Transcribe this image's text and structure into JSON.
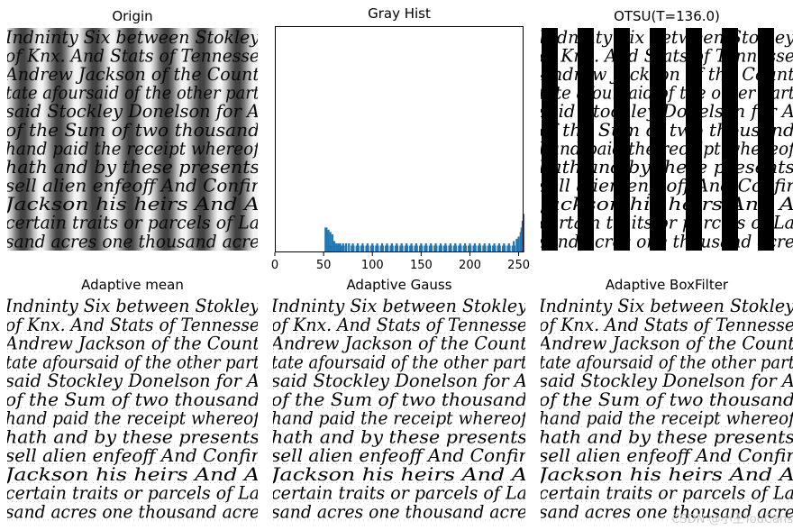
{
  "panels": {
    "origin": {
      "title": "Origin"
    },
    "gray_hist": {
      "title": "Gray Hist"
    },
    "otsu": {
      "title": "OTSU(T=136.0)"
    },
    "adaptive_mean": {
      "title": "Adaptive mean"
    },
    "adaptive_gauss": {
      "title": "Adaptive Gauss"
    },
    "adaptive_boxfilter": {
      "title": "Adaptive BoxFilter"
    }
  },
  "handwriting_lines": [
    "Indninty Six between Stokley",
    "of Knx. And Stats of Tennesse",
    "Andrew Jackson of the Count",
    "tate afoursaid of the other part",
    "said Stockley Donelson for A",
    "of the Sum of two thousand",
    "hand paid the receipt whereof",
    "hath and by these presents",
    "sell alien enfeoff And Confir",
    "Jackson his heirs And A",
    "certain traits or parcels of La",
    "sand acres one thousand acre"
  ],
  "chart_data": {
    "type": "bar",
    "title": "Gray Hist",
    "xlabel": "",
    "ylabel": "",
    "xlim": [
      0,
      255
    ],
    "xticks": [
      0,
      50,
      100,
      150,
      200,
      250
    ],
    "bar_color": "#1f77b4",
    "grid": false,
    "x": [
      52,
      53,
      55,
      57,
      59,
      61,
      63,
      65,
      67,
      70,
      73,
      76,
      80,
      85,
      90,
      95,
      100,
      105,
      110,
      115,
      120,
      125,
      130,
      135,
      140,
      145,
      150,
      155,
      160,
      165,
      170,
      175,
      180,
      185,
      190,
      195,
      200,
      205,
      210,
      215,
      220,
      225,
      230,
      235,
      240,
      245,
      248,
      250,
      252,
      253,
      254,
      255
    ],
    "values": [
      11,
      11,
      10,
      9,
      8,
      5,
      4,
      4,
      4,
      4,
      4,
      4,
      4,
      4,
      4,
      4,
      4,
      4,
      4,
      4,
      4,
      4,
      4,
      4,
      4,
      4,
      4,
      4,
      4,
      4,
      4,
      4,
      4,
      4,
      4,
      4,
      4,
      4,
      4,
      4,
      4,
      4,
      4,
      4,
      4,
      5,
      6,
      7,
      9,
      11,
      14,
      17
    ],
    "ylim": [
      0,
      100
    ]
  },
  "watermark": {
    "text": "CSDN @小王YouCans"
  },
  "colors": {
    "black": "#000000",
    "white": "#ffffff",
    "bar": "#1f77b4"
  }
}
